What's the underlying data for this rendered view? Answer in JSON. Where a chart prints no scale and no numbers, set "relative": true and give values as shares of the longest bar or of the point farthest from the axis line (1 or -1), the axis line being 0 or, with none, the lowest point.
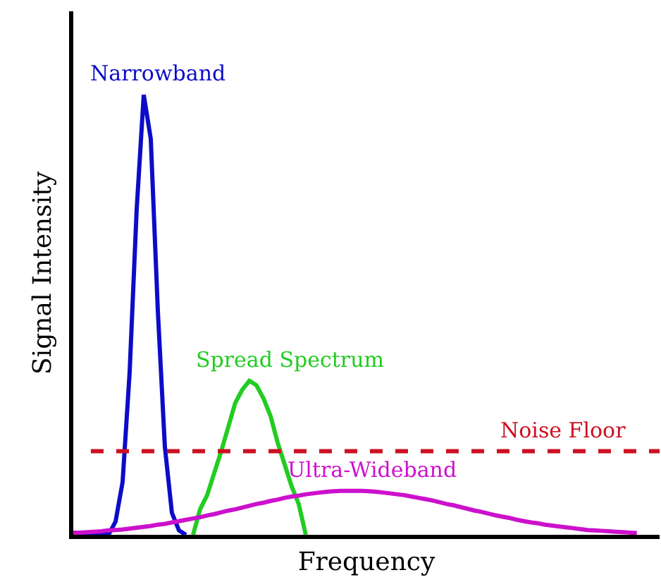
{
  "chart_data": {
    "type": "line",
    "relative": true,
    "xlabel": "Frequency",
    "ylabel": "Signal Intensity",
    "grid": false,
    "legend": false,
    "marker": "none",
    "categories": [
      null,
      null,
      null,
      null,
      null,
      null,
      null,
      null,
      null,
      null,
      null,
      null,
      null,
      null,
      null,
      null,
      null,
      null,
      null,
      null,
      null,
      null,
      null,
      null,
      null,
      null,
      null,
      null,
      null,
      null,
      null,
      null,
      null,
      null,
      null,
      null,
      null,
      null,
      null,
      null,
      null,
      null,
      null,
      null,
      null,
      null,
      null,
      null,
      null,
      null,
      null,
      null,
      null,
      null,
      null,
      null,
      null,
      null,
      null,
      null,
      null,
      null,
      null,
      null,
      null,
      null,
      null,
      null,
      null,
      null,
      null,
      null,
      null,
      null,
      null,
      null,
      null,
      null,
      null,
      null,
      null,
      null,
      null
    ],
    "series": [
      {
        "name": "Narrowband",
        "color": "#0c0cc8",
        "values": [
          0,
          0,
          0,
          0,
          0,
          0,
          0.03,
          0.12,
          0.37,
          0.74,
          1,
          0.9,
          0.51,
          0.2,
          0.05,
          0.01,
          0,
          null,
          null,
          null,
          null,
          null,
          null,
          null,
          null,
          null,
          null,
          null,
          null,
          null,
          null,
          null,
          null,
          null,
          null,
          null,
          null,
          null,
          null,
          null,
          null,
          null,
          null,
          null,
          null,
          null,
          null,
          null,
          null,
          null,
          null,
          null,
          null,
          null,
          null,
          null,
          null,
          null,
          null,
          null,
          null,
          null,
          null,
          null,
          null,
          null,
          null,
          null,
          null,
          null,
          null,
          null,
          null,
          null,
          null,
          null,
          null,
          null,
          null,
          null,
          null,
          null,
          null
        ]
      },
      {
        "name": "Spread Spectrum",
        "color": "#22cc22",
        "values": [
          null,
          null,
          null,
          null,
          null,
          null,
          null,
          null,
          null,
          null,
          null,
          null,
          null,
          null,
          null,
          null,
          null,
          0,
          0.058,
          0.09,
          0.14,
          0.19,
          0.245,
          0.3,
          0.33,
          0.35,
          0.34,
          0.31,
          0.27,
          0.21,
          0.16,
          0.11,
          0.07,
          0,
          null,
          null,
          null,
          null,
          null,
          null,
          null,
          null,
          null,
          null,
          null,
          null,
          null,
          null,
          null,
          null,
          null,
          null,
          null,
          null,
          null,
          null,
          null,
          null,
          null,
          null,
          null,
          null,
          null,
          null,
          null,
          null,
          null,
          null,
          null,
          null,
          null,
          null,
          null,
          null,
          null,
          null,
          null,
          null,
          null,
          null,
          null,
          null,
          null
        ]
      },
      {
        "name": "Ultra-Wideband",
        "color": "#cc11cc",
        "values": [
          0.005,
          0.005,
          0.006,
          0.007,
          0.008,
          0.01,
          0.011,
          0.012,
          0.014,
          0.016,
          0.018,
          0.02,
          0.023,
          0.025,
          0.028,
          0.031,
          0.034,
          0.037,
          0.04,
          0.044,
          0.047,
          0.051,
          0.055,
          0.058,
          0.062,
          0.066,
          0.07,
          0.073,
          0.077,
          0.08,
          0.084,
          0.087,
          0.089,
          0.092,
          0.094,
          0.096,
          0.098,
          0.099,
          0.1,
          0.1,
          0.1,
          0.1,
          0.099,
          0.098,
          0.096,
          0.094,
          0.092,
          0.09,
          0.087,
          0.084,
          0.081,
          0.078,
          0.074,
          0.07,
          0.067,
          0.063,
          0.059,
          0.055,
          0.052,
          0.048,
          0.044,
          0.041,
          0.038,
          0.034,
          0.031,
          0.028,
          0.026,
          0.023,
          0.021,
          0.019,
          0.017,
          0.015,
          0.013,
          0.011,
          0.01,
          0.009,
          0.008,
          0.007,
          0.006,
          0.005,
          0.004,
          null,
          null
        ]
      }
    ],
    "ref_lines": [
      {
        "axis": "y",
        "value": 0.19,
        "label": "Noise Floor",
        "color": "#cc1122",
        "line_style": "dashed"
      }
    ]
  }
}
